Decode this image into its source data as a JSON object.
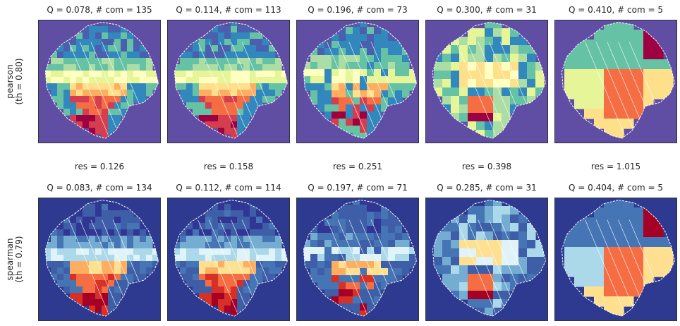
{
  "chart_data": {
    "type": "heatmap",
    "description_free": true,
    "columns": 5,
    "rows": [
      {
        "name": "pearson",
        "threshold_label": "(th = 0.80)",
        "colors": {
          "background": "#5f4ea3",
          "palette": [
            "#9e0142",
            "#d53e4f",
            "#f46d43",
            "#fdae61",
            "#fee08b",
            "#ffffbf",
            "#e6f598",
            "#abdda4",
            "#66c2a5",
            "#3288bd",
            "#4a5fae"
          ]
        },
        "panels": [
          {
            "title": "Q = 0.078,  # com = 135",
            "Q": 0.078,
            "communities": 135
          },
          {
            "title": "Q = 0.114,  # com = 113",
            "Q": 0.114,
            "communities": 113
          },
          {
            "title": "Q = 0.196,  # com = 73",
            "Q": 0.196,
            "communities": 73
          },
          {
            "title": "Q = 0.300,  # com = 31",
            "Q": 0.3,
            "communities": 31
          },
          {
            "title": "Q = 0.410,  # com = 5",
            "Q": 0.41,
            "communities": 5
          }
        ]
      },
      {
        "name": "spearman",
        "threshold_label": "(th = 0.79)",
        "colors": {
          "background": "#2e3a8f",
          "palette": [
            "#a50026",
            "#d73027",
            "#f46d43",
            "#fdae61",
            "#fee090",
            "#e0f3f8",
            "#abd9e9",
            "#74add1",
            "#4575b4",
            "#3e5fa8",
            "#313695"
          ]
        },
        "panels": [
          {
            "title": "Q = 0.083,  # com = 134",
            "Q": 0.083,
            "communities": 134
          },
          {
            "title": "Q = 0.112,  # com = 114",
            "Q": 0.112,
            "communities": 114
          },
          {
            "title": "Q = 0.197,  # com = 71",
            "Q": 0.197,
            "communities": 71
          },
          {
            "title": "Q = 0.285,  # com = 31",
            "Q": 0.285,
            "communities": 31
          },
          {
            "title": "Q = 0.404,  # com = 5",
            "Q": 0.404,
            "communities": 5
          }
        ]
      }
    ],
    "resolutions": [
      {
        "label": "res = 0.126",
        "value": 0.126
      },
      {
        "label": "res = 0.158",
        "value": 0.158
      },
      {
        "label": "res = 0.251",
        "value": 0.251
      },
      {
        "label": "res = 0.398",
        "value": 0.398
      },
      {
        "label": "res = 1.015",
        "value": 1.015
      }
    ],
    "outline_color": "#ffffff"
  }
}
